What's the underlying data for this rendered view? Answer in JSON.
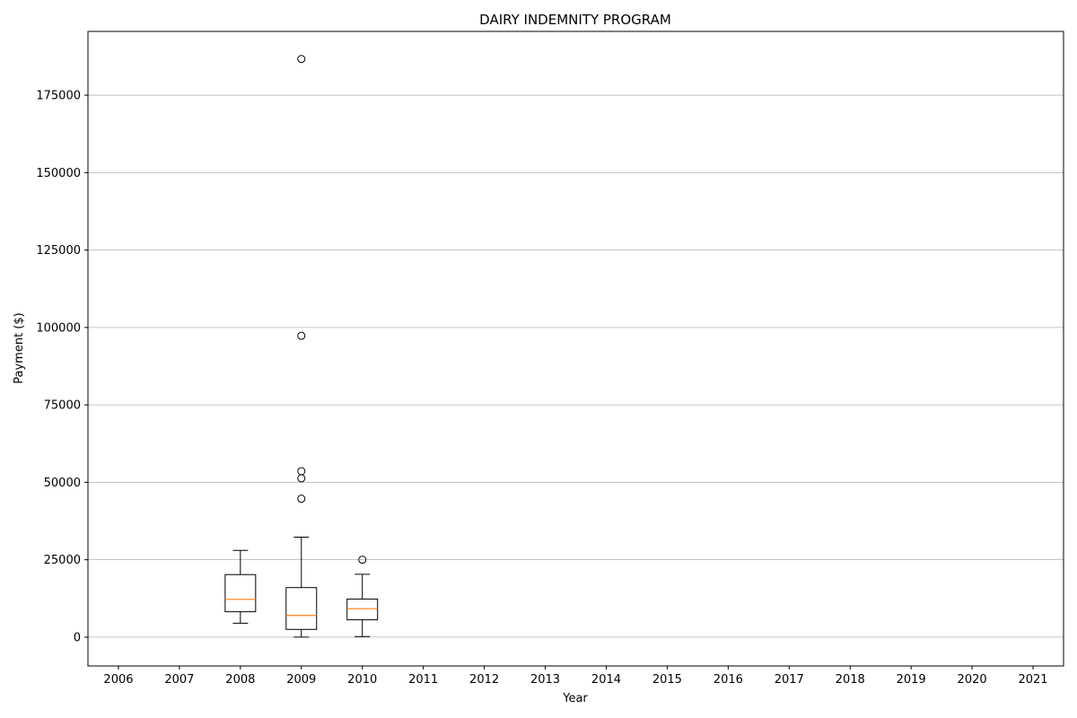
{
  "chart_data": {
    "type": "box",
    "title": "DAIRY INDEMNITY PROGRAM",
    "xlabel": "Year",
    "ylabel": "Payment ($)",
    "categories": [
      "2006",
      "2007",
      "2008",
      "2009",
      "2010",
      "2011",
      "2012",
      "2013",
      "2014",
      "2015",
      "2016",
      "2017",
      "2018",
      "2019",
      "2020",
      "2021"
    ],
    "yticks": [
      0,
      25000,
      50000,
      75000,
      100000,
      125000,
      150000,
      175000
    ],
    "ylim": [
      -9300,
      195600
    ],
    "grid": "y",
    "boxes": [
      {
        "category": "2008",
        "whisker_low": 4500,
        "q1": 8200,
        "median": 12200,
        "q3": 20200,
        "whisker_high": 28000,
        "outliers": []
      },
      {
        "category": "2009",
        "whisker_low": 0,
        "q1": 2500,
        "median": 7000,
        "q3": 16000,
        "whisker_high": 32300,
        "outliers": [
          44700,
          51300,
          53600,
          97300,
          186700
        ]
      },
      {
        "category": "2010",
        "whisker_low": 200,
        "q1": 5600,
        "median": 9200,
        "q3": 12300,
        "whisker_high": 20300,
        "outliers": [
          25000
        ]
      }
    ],
    "colors": {
      "box": "#000000",
      "median": "#ff7f0e",
      "grid": "#b0b0b0",
      "axis": "#000000"
    }
  }
}
